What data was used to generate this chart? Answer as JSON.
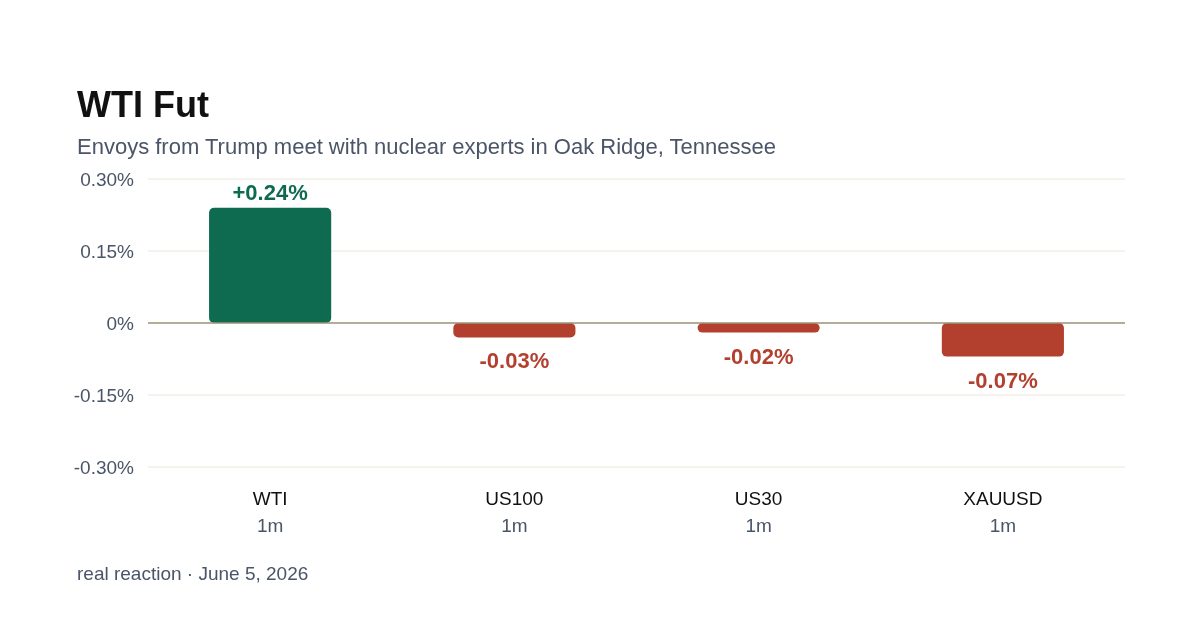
{
  "chart_data": {
    "type": "bar",
    "title": "WTI Fut",
    "subtitle": "Envoys from Trump meet with nuclear experts in Oak Ridge, Tennessee",
    "categories": [
      "WTI\n1m",
      "US100\n1m",
      "US30\n1m",
      "XAUUSD\n1m"
    ],
    "values": [
      0.24,
      -0.03,
      -0.02,
      -0.07
    ],
    "colors": [
      "#0f6b50",
      "#b3402f",
      "#b3402f",
      "#b3402f"
    ],
    "value_labels": [
      "+0.24%",
      "-0.03%",
      "-0.02%",
      "-0.07%"
    ],
    "ylim": [
      -0.3,
      0.3
    ],
    "yticks": [
      {
        "value": -0.3,
        "label": "-0.30%"
      },
      {
        "value": -0.15,
        "label": "-0.15%"
      },
      {
        "value": 0,
        "label": "0%"
      },
      {
        "value": 0.15,
        "label": "0.15%"
      },
      {
        "value": 0.3,
        "label": "0.30%"
      }
    ],
    "grid": "y",
    "annotations": [
      "real reaction · June 5, 2026"
    ]
  }
}
